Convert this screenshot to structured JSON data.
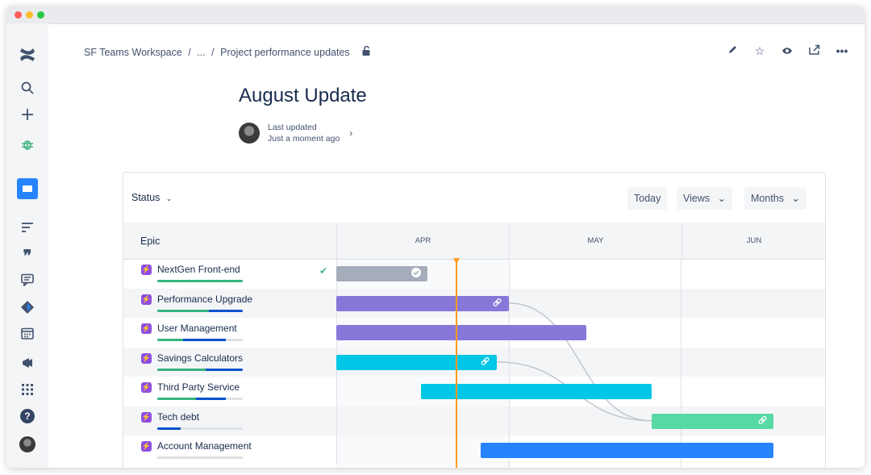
{
  "sidebar": {
    "items": [
      {
        "icon": "confluence-logo-icon"
      },
      {
        "icon": "search-icon"
      },
      {
        "icon": "create-icon"
      },
      {
        "icon": "bug-icon"
      },
      {
        "icon": "page-icon"
      },
      {
        "icon": "text-format-icon"
      },
      {
        "icon": "quote-icon"
      },
      {
        "icon": "comment-icon"
      },
      {
        "icon": "feedback-icon"
      },
      {
        "icon": "calendar-icon"
      },
      {
        "icon": "megaphone-icon"
      },
      {
        "icon": "apps-grid-icon"
      },
      {
        "icon": "help-icon"
      },
      {
        "icon": "avatar"
      }
    ]
  },
  "breadcrumb": {
    "workspace": "SF Teams Workspace",
    "sep1": "/",
    "ellipsis": "...",
    "sep2": "/",
    "page": "Project performance updates"
  },
  "page": {
    "title": "August Update",
    "last_updated_label": "Last updated",
    "last_updated_value": "Just a moment ago"
  },
  "roadmap": {
    "status_label": "Status",
    "today_label": "Today",
    "views_label": "Views",
    "months_label": "Months",
    "epic_header": "Epic",
    "months": [
      "APR",
      "MAY",
      "JUN"
    ],
    "epics": [
      {
        "name": "NextGen Front-end",
        "done": true,
        "color": "#a5adba",
        "start": 0.0,
        "end": 0.53,
        "progress": [
          [
            "#36b37e",
            1.0
          ]
        ]
      },
      {
        "name": "Performance Upgrade",
        "color": "#8777d9",
        "start": 0.0,
        "end": 1.0,
        "progress": [
          [
            "#36b37e",
            0.6
          ],
          [
            "#0052cc",
            0.4
          ]
        ]
      },
      {
        "name": "User Management",
        "color": "#8777d9",
        "start": 0.0,
        "end": 1.45,
        "progress": [
          [
            "#36b37e",
            0.3
          ],
          [
            "#0052cc",
            0.5
          ]
        ]
      },
      {
        "name": "Savings Calculators",
        "color": "#00c7e6",
        "start": 0.0,
        "end": 0.93,
        "progress": [
          [
            "#36b37e",
            0.57
          ],
          [
            "#0052cc",
            0.43
          ]
        ]
      },
      {
        "name": "Third Party Service",
        "color": "#00c7e6",
        "start": 0.49,
        "end": 1.83,
        "progress": [
          [
            "#36b37e",
            0.45
          ],
          [
            "#0052cc",
            0.35
          ]
        ]
      },
      {
        "name": "Tech debt",
        "color": "#57d9a3",
        "start": 1.83,
        "end": 2.54,
        "progress": [
          [
            "#0052cc",
            0.27
          ]
        ]
      },
      {
        "name": "Account Management",
        "color": "#2684ff",
        "start": 0.84,
        "end": 2.54,
        "progress": []
      }
    ],
    "today_position": 0.7
  },
  "colors": {
    "accent": "#0052cc",
    "today": "#ff991f",
    "sidebar_selected": "#2684ff"
  }
}
